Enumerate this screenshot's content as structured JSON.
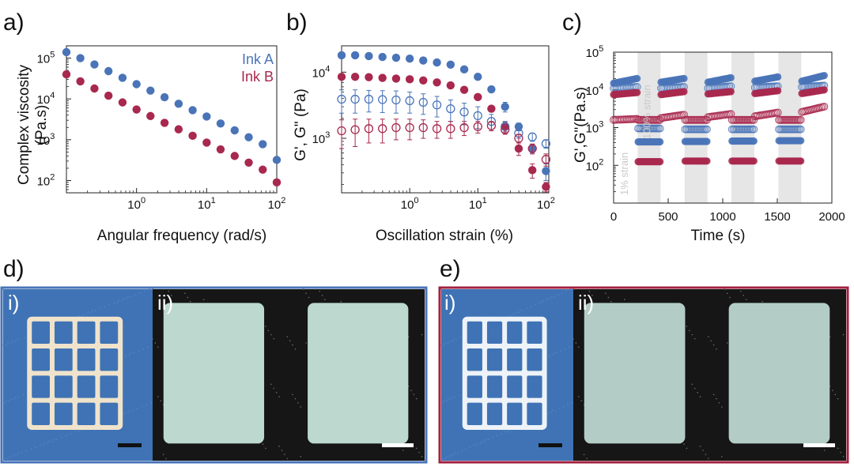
{
  "colors": {
    "ink_a": "#4a74b8",
    "ink_b": "#a8284e",
    "frame_d": "#4a74b8",
    "frame_e": "#a3213f",
    "strain_band": "#e6e6e6"
  },
  "panels": {
    "a": "a)",
    "b": "b)",
    "c": "c)",
    "d": "d)",
    "e": "e)",
    "d_i": "i)",
    "d_ii": "ii)",
    "e_i": "i)",
    "e_ii": "ii)"
  },
  "photos": {
    "d_i": {
      "background": "#3f73b5",
      "object": "lattice",
      "object_color": "#efe3cc"
    },
    "d_ii": {
      "background": "#161616",
      "object": "two-squares",
      "object_color": "#bcd8cf"
    },
    "e_i": {
      "background": "#3f73b5",
      "object": "lattice",
      "object_color": "#eef3f8"
    },
    "e_ii": {
      "background": "#161616",
      "object": "two-squares",
      "object_color": "#b3cdc6"
    }
  },
  "chart_data": [
    {
      "type": "scatter",
      "panel": "a)",
      "xlabel": "Angular frequency (rad/s)",
      "ylabel": "Complex viscosity (Pa.s)",
      "xscale": "log",
      "yscale": "log",
      "xlim": [
        0.1,
        100
      ],
      "ylim": [
        50,
        200000
      ],
      "x_ticks": [
        {
          "base": "10",
          "exp": "0",
          "v": 1
        },
        {
          "base": "10",
          "exp": "1",
          "v": 10
        },
        {
          "base": "10",
          "exp": "2",
          "v": 100
        }
      ],
      "y_ticks": [
        {
          "base": "10",
          "exp": "2",
          "v": 100
        },
        {
          "base": "10",
          "exp": "3",
          "v": 1000
        },
        {
          "base": "10",
          "exp": "4",
          "v": 10000
        },
        {
          "base": "10",
          "exp": "5",
          "v": 100000
        }
      ],
      "legend_position": "top-right",
      "series": [
        {
          "name": "Ink A",
          "color": "#4a74b8",
          "x": [
            0.1,
            0.158,
            0.251,
            0.398,
            0.631,
            1,
            1.58,
            2.51,
            3.98,
            6.31,
            10,
            15.8,
            25.1,
            39.8,
            63.1,
            100
          ],
          "y": [
            140000,
            100000,
            70000,
            48000,
            33000,
            23000,
            16000,
            11000,
            7600,
            5300,
            3700,
            2500,
            1700,
            1150,
            780,
            320
          ]
        },
        {
          "name": "Ink B",
          "color": "#a8284e",
          "x": [
            0.1,
            0.158,
            0.251,
            0.398,
            0.631,
            1,
            1.58,
            2.51,
            3.98,
            6.31,
            10,
            15.8,
            25.1,
            39.8,
            63.1,
            100
          ],
          "y": [
            40000,
            27000,
            18000,
            12000,
            8200,
            5500,
            3800,
            2600,
            1800,
            1250,
            850,
            580,
            400,
            275,
            185,
            90
          ]
        }
      ]
    },
    {
      "type": "scatter",
      "panel": "b)",
      "xlabel": "Oscillation strain (%)",
      "ylabel": "G', G\" (Pa)",
      "xscale": "log",
      "yscale": "log",
      "xlim": [
        0.1,
        110
      ],
      "ylim": [
        150,
        25000
      ],
      "x_ticks": [
        {
          "base": "10",
          "exp": "0",
          "v": 1
        },
        {
          "base": "10",
          "exp": "1",
          "v": 10
        },
        {
          "base": "10",
          "exp": "2",
          "v": 100
        }
      ],
      "y_ticks": [
        {
          "base": "10",
          "exp": "3",
          "v": 1000
        },
        {
          "base": "10",
          "exp": "4",
          "v": 10000
        }
      ],
      "series": [
        {
          "name": "",
          "ink": "A",
          "modulus": "G'",
          "filled": true,
          "color": "#4a74b8",
          "x": [
            0.1,
            0.158,
            0.251,
            0.398,
            0.631,
            1,
            1.58,
            2.51,
            3.98,
            6.31,
            10,
            15.8,
            25.1,
            39.8,
            63.1,
            100
          ],
          "y": [
            18000,
            18000,
            17500,
            17000,
            16500,
            16000,
            15000,
            14000,
            13000,
            11000,
            8500,
            5500,
            3000,
            1500,
            700,
            320
          ],
          "err": [
            0,
            0,
            0,
            0,
            0,
            0,
            0,
            0,
            0,
            0,
            0,
            0,
            500,
            200,
            100,
            90
          ]
        },
        {
          "name": "",
          "ink": "B",
          "modulus": "G'",
          "filled": true,
          "color": "#a8284e",
          "x": [
            0.1,
            0.158,
            0.251,
            0.398,
            0.631,
            1,
            1.58,
            2.51,
            3.98,
            6.31,
            10,
            15.8,
            25.1,
            39.8,
            63.1,
            100
          ],
          "y": [
            8500,
            8500,
            8400,
            8200,
            8000,
            7800,
            7500,
            7000,
            6300,
            5400,
            4200,
            2800,
            1500,
            700,
            330,
            185
          ],
          "err": [
            0,
            0,
            0,
            0,
            0,
            0,
            0,
            0,
            0,
            0,
            0,
            0,
            250,
            150,
            80,
            30
          ]
        },
        {
          "name": "",
          "ink": "A",
          "modulus": "G\"",
          "filled": false,
          "color": "#4a74b8",
          "x": [
            0.1,
            0.158,
            0.251,
            0.398,
            0.631,
            1,
            1.58,
            2.51,
            3.98,
            6.31,
            10,
            15.8,
            25.1,
            39.8,
            63.1,
            100
          ],
          "y": [
            3900,
            3900,
            3900,
            3850,
            3800,
            3700,
            3500,
            3200,
            2800,
            2500,
            2200,
            1800,
            1500,
            1200,
            1050,
            830
          ],
          "err": [
            1500,
            1500,
            1400,
            1400,
            1400,
            1300,
            1200,
            1100,
            1000,
            900,
            800,
            500,
            300,
            200,
            150,
            120
          ]
        },
        {
          "name": "",
          "ink": "B",
          "modulus": "G\"",
          "filled": false,
          "color": "#a8284e",
          "x": [
            0.1,
            0.158,
            0.251,
            0.398,
            0.631,
            1,
            1.58,
            2.51,
            3.98,
            6.31,
            10,
            15.8,
            25.1,
            39.8,
            63.1,
            100
          ],
          "y": [
            1300,
            1350,
            1400,
            1400,
            1450,
            1450,
            1450,
            1400,
            1400,
            1450,
            1500,
            1550,
            1350,
            1000,
            700,
            480
          ],
          "err": [
            600,
            600,
            550,
            550,
            500,
            500,
            450,
            400,
            400,
            350,
            300,
            250,
            200,
            150,
            120,
            100
          ]
        }
      ]
    },
    {
      "type": "scatter",
      "panel": "c)",
      "xlabel": "Time (s)",
      "ylabel": "G',G\"(Pa.s)",
      "xscale": "linear",
      "yscale": "log",
      "xlim": [
        0,
        2000
      ],
      "ylim": [
        10,
        100000
      ],
      "x_ticks": [
        0,
        500,
        1000,
        1500,
        2000
      ],
      "y_ticks": [
        {
          "base": "10",
          "exp": "2",
          "v": 100
        },
        {
          "base": "10",
          "exp": "3",
          "v": 1000
        },
        {
          "base": "10",
          "exp": "4",
          "v": 10000
        },
        {
          "base": "10",
          "exp": "5",
          "v": 100000
        }
      ],
      "annotations": [
        "1% strain",
        "100% strain"
      ],
      "high_strain_intervals": [
        [
          220,
          430
        ],
        [
          650,
          860
        ],
        [
          1080,
          1290
        ],
        [
          1510,
          1720
        ]
      ],
      "intervals": [
        [
          0,
          215
        ],
        [
          225,
          425
        ],
        [
          655,
          855
        ],
        [
          1085,
          1285
        ],
        [
          1515,
          1715
        ],
        [
          435,
          645
        ],
        [
          865,
          1075
        ],
        [
          1295,
          1505
        ],
        [
          1725,
          1930
        ]
      ],
      "series": [
        {
          "name": "",
          "ink": "A",
          "modulus": "G'",
          "filled": true,
          "color": "#4a74b8",
          "segments": [
            [
              0,
              215,
              15000,
              20000
            ],
            [
              225,
              425,
              420,
              420
            ],
            [
              435,
              645,
              16000,
              20000
            ],
            [
              655,
              855,
              430,
              430
            ],
            [
              865,
              1075,
              16000,
              21000
            ],
            [
              1085,
              1285,
              440,
              440
            ],
            [
              1295,
              1505,
              17000,
              22000
            ],
            [
              1515,
              1715,
              450,
              450
            ],
            [
              1725,
              1930,
              17000,
              24000
            ]
          ]
        },
        {
          "name": "",
          "ink": "A",
          "modulus": "G\"",
          "filled": false,
          "color": "#4a74b8",
          "segments": [
            [
              0,
              215,
              11000,
              12000
            ],
            [
              225,
              425,
              950,
              950
            ],
            [
              435,
              645,
              11000,
              12000
            ],
            [
              655,
              855,
              900,
              900
            ],
            [
              865,
              1075,
              11000,
              12500
            ],
            [
              1085,
              1285,
              900,
              900
            ],
            [
              1295,
              1505,
              11500,
              12500
            ],
            [
              1515,
              1715,
              900,
              900
            ],
            [
              1725,
              1930,
              12000,
              13000
            ]
          ]
        },
        {
          "name": "",
          "ink": "B",
          "modulus": "G'",
          "filled": true,
          "color": "#a8284e",
          "segments": [
            [
              0,
              215,
              7500,
              8500
            ],
            [
              225,
              425,
              125,
              125
            ],
            [
              435,
              645,
              7500,
              9000
            ],
            [
              655,
              855,
              130,
              130
            ],
            [
              865,
              1075,
              7800,
              9000
            ],
            [
              1085,
              1285,
              130,
              130
            ],
            [
              1295,
              1505,
              8000,
              9500
            ],
            [
              1515,
              1715,
              130,
              130
            ],
            [
              1725,
              1930,
              8000,
              10000
            ]
          ]
        },
        {
          "name": "",
          "ink": "B",
          "modulus": "G\"",
          "filled": false,
          "color": "#a8284e",
          "segments": [
            [
              0,
              215,
              1600,
              1700
            ],
            [
              225,
              425,
              1600,
              1600
            ],
            [
              435,
              645,
              1800,
              2200
            ],
            [
              655,
              855,
              1600,
              1600
            ],
            [
              865,
              1075,
              1900,
              2300
            ],
            [
              1085,
              1285,
              1600,
              1600
            ],
            [
              1295,
              1505,
              2000,
              2500
            ],
            [
              1515,
              1715,
              1600,
              1600
            ],
            [
              1725,
              1930,
              2600,
              3600
            ]
          ]
        }
      ]
    }
  ]
}
